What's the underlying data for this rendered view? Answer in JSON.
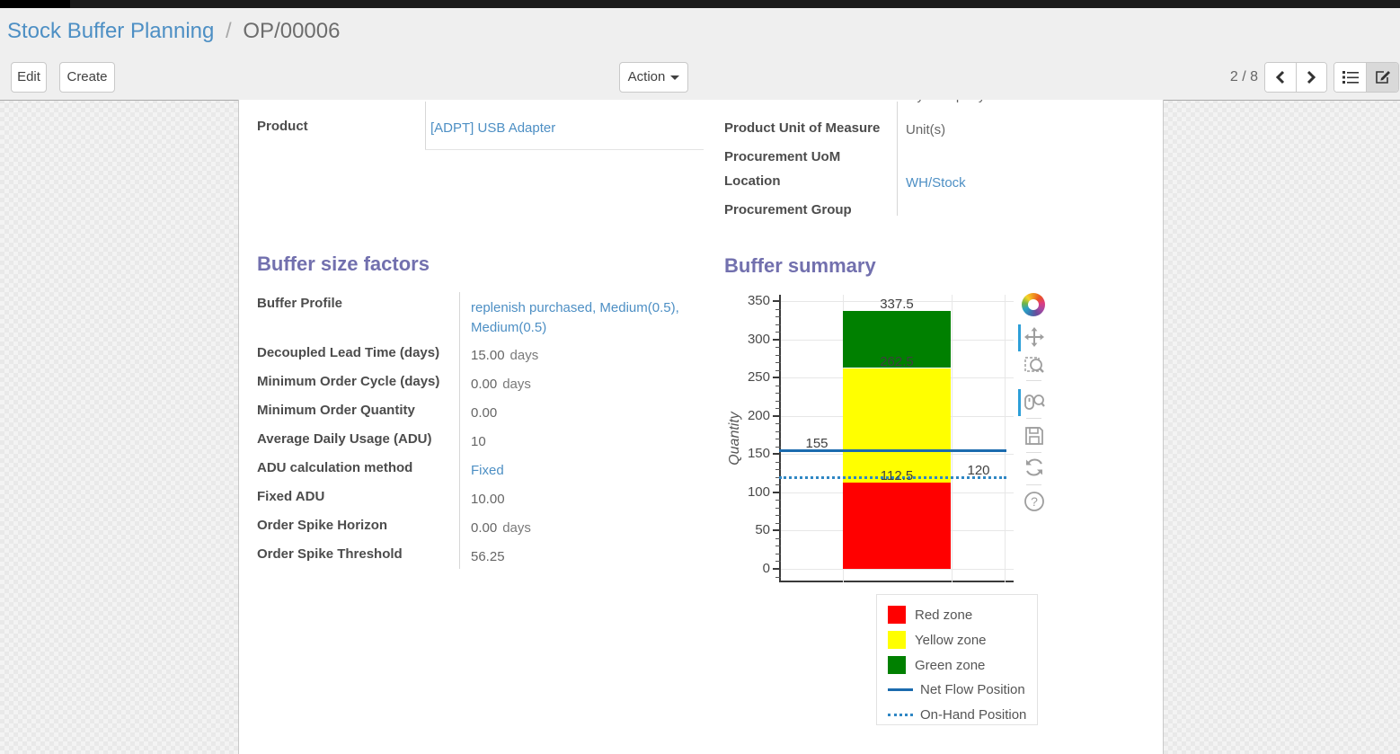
{
  "breadcrumb": {
    "parent": "Stock Buffer Planning",
    "separator": "/",
    "current": "OP/00006"
  },
  "control_panel": {
    "edit_label": "Edit",
    "create_label": "Create",
    "action_label": "Action",
    "pager_value": "2 / 8"
  },
  "form": {
    "cutoff_value": "My Company",
    "product": {
      "label": "Product",
      "value": "[ADPT] USB Adapter"
    },
    "right_group": {
      "rows": [
        {
          "label": "Product Unit of Measure",
          "value": "Unit(s)"
        },
        {
          "label": "Procurement UoM",
          "value": ""
        },
        {
          "label": "Location",
          "value": "WH/Stock"
        },
        {
          "label": "Procurement Group",
          "value": ""
        }
      ]
    },
    "factors": {
      "title": "Buffer size factors",
      "rows": [
        {
          "label": "Buffer Profile",
          "value": "replenish purchased, Medium(0.5), Medium(0.5)",
          "suffix": ""
        },
        {
          "label": "Decoupled Lead Time (days)",
          "value": "15.00",
          "suffix": "days"
        },
        {
          "label": "Minimum Order Cycle (days)",
          "value": "0.00",
          "suffix": "days"
        },
        {
          "label": "Minimum Order Quantity",
          "value": "0.00",
          "suffix": ""
        },
        {
          "label": "Average Daily Usage (ADU)",
          "value": "10",
          "suffix": ""
        },
        {
          "label": "ADU calculation method",
          "value": "Fixed",
          "suffix": ""
        },
        {
          "label": "Fixed ADU",
          "value": "10.00",
          "suffix": ""
        },
        {
          "label": "Order Spike Horizon",
          "value": "0.00",
          "suffix": "days"
        },
        {
          "label": "Order Spike Threshold",
          "value": "56.25",
          "suffix": ""
        }
      ]
    },
    "summary_title": "Buffer summary"
  },
  "chart_data": {
    "type": "bar",
    "title": "Buffer summary",
    "ylabel": "Quantity",
    "ylim": [
      0,
      350
    ],
    "ytick_step": 50,
    "yminor_step": 10,
    "grid": true,
    "zones": {
      "red": [
        0,
        112.5
      ],
      "yellow": [
        112.5,
        262.5
      ],
      "green": [
        262.5,
        337.5
      ]
    },
    "lines": [
      {
        "name": "Net Flow Position",
        "value": 155,
        "style": "solid"
      },
      {
        "name": "On-Hand Position",
        "value": 120,
        "style": "dotted"
      }
    ],
    "labels": {
      "total_top": "337.5",
      "green_bottom": "262.5",
      "net_flow": "155",
      "red_top": "112.5",
      "on_hand": "120"
    },
    "colors": {
      "red_zone": "#ff0000",
      "yellow_zone": "#ffff00",
      "green_zone": "#008000",
      "net_flow": "#1b6bae",
      "on_hand": "#2f87c4"
    },
    "legend": [
      {
        "label": "Red zone",
        "swatch": "square",
        "color": "#ff0000"
      },
      {
        "label": "Yellow zone",
        "swatch": "square",
        "color": "#ffff00"
      },
      {
        "label": "Green zone",
        "swatch": "square",
        "color": "#008000"
      },
      {
        "label": "Net Flow Position",
        "swatch": "line-solid",
        "color": "#1b6bae"
      },
      {
        "label": "On-Hand Position",
        "swatch": "line-dotted",
        "color": "#2f87c4"
      }
    ],
    "legend_position": "below-right",
    "toolbar": [
      "bokeh-logo",
      "pan",
      "box-zoom",
      "wheel-zoom",
      "save",
      "reset",
      "help"
    ],
    "toolbar_active": [
      "pan",
      "wheel-zoom"
    ]
  }
}
